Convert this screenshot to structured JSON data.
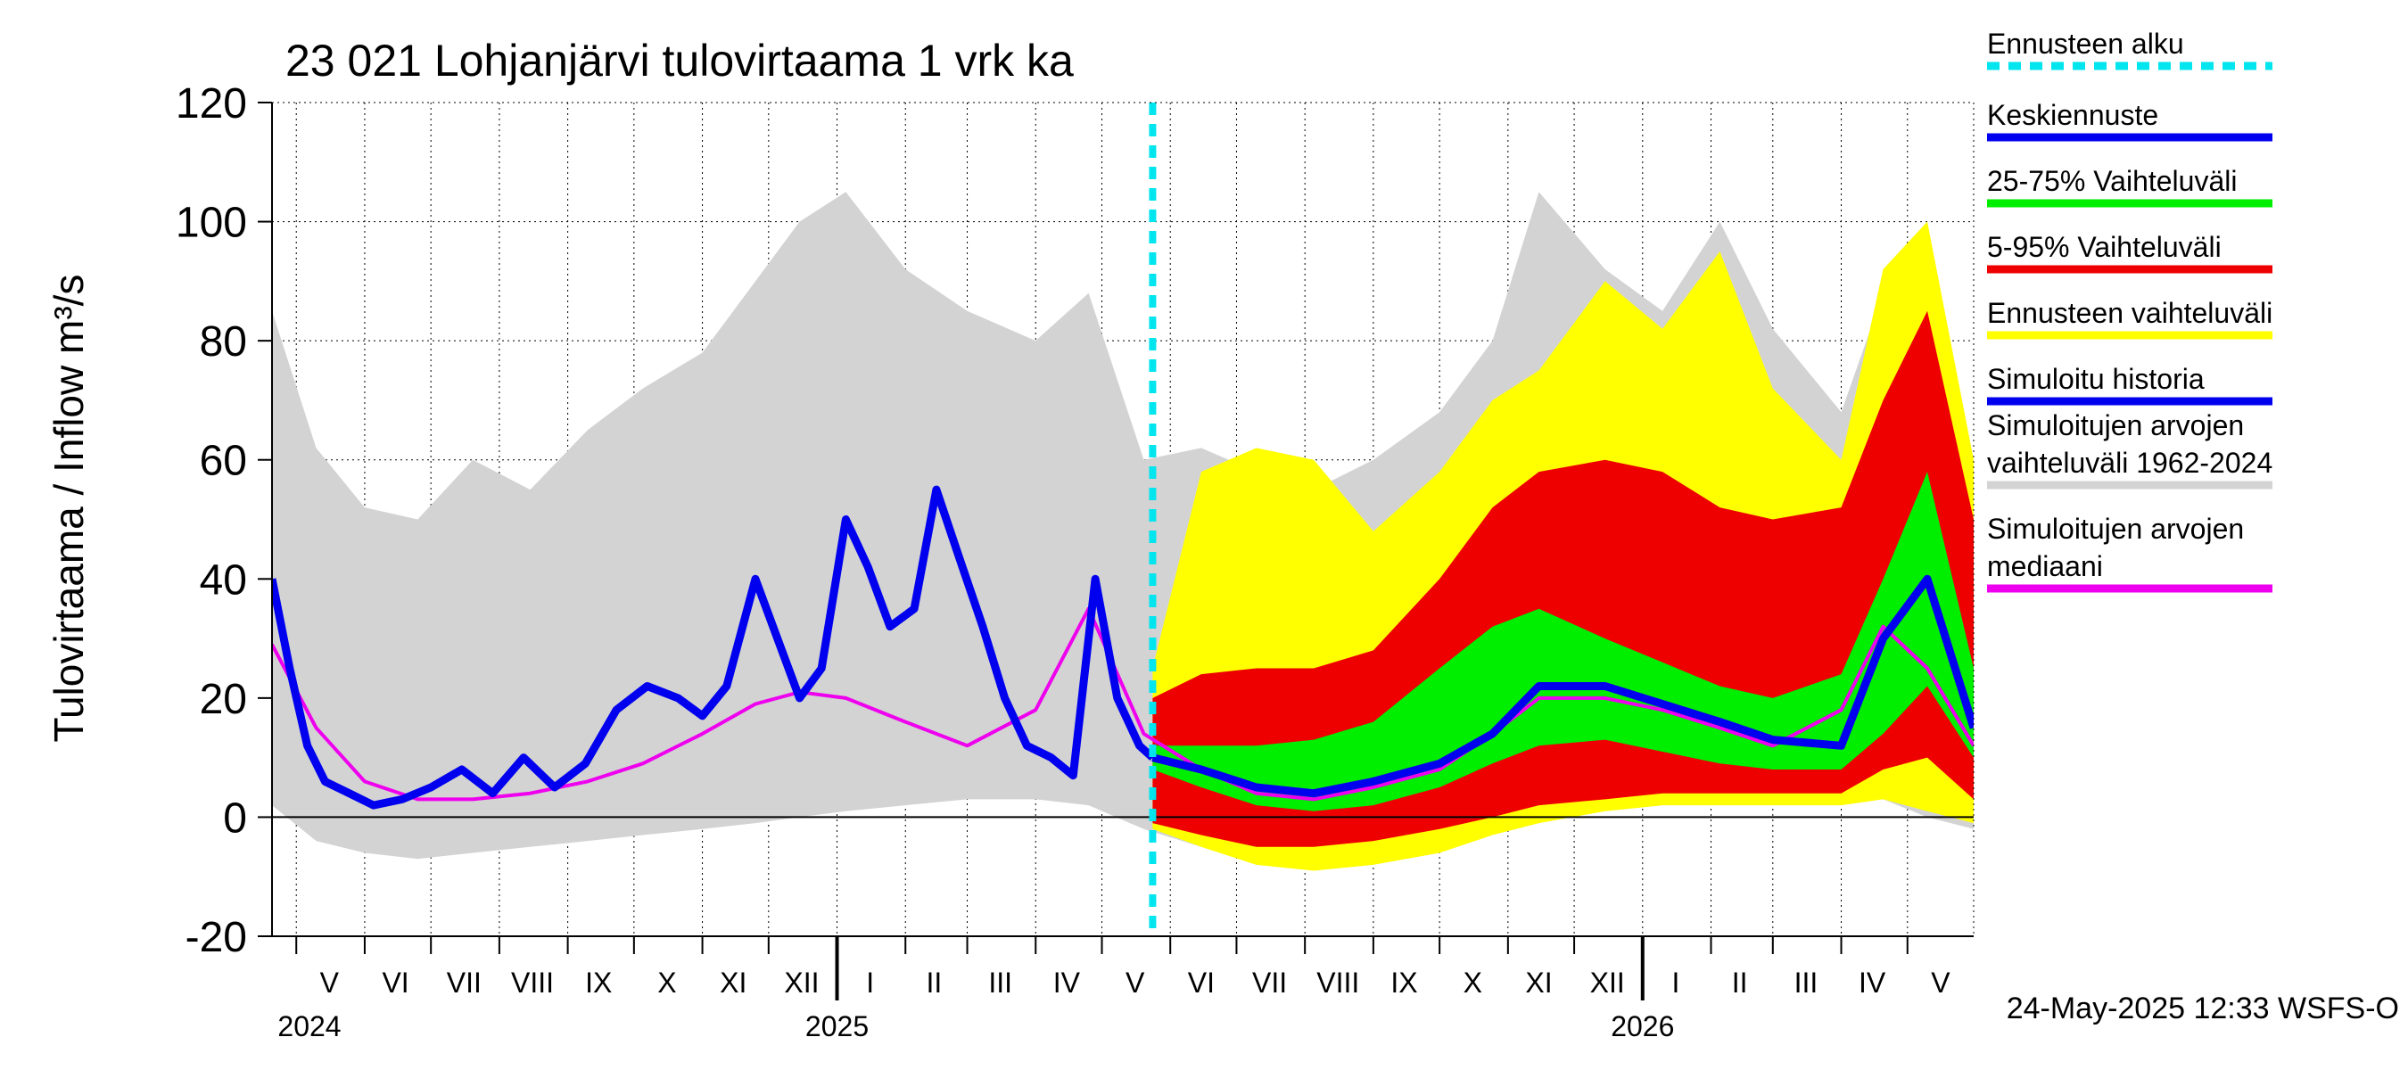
{
  "chart_data": {
    "type": "area",
    "title": "23 021 Lohjanjärvi tulovirtaama 1 vrk ka",
    "ylabel": "Tulovirtaama / Inflow    m³/s",
    "ylim": [
      -20,
      120
    ],
    "y_ticks": [
      -20,
      0,
      20,
      40,
      60,
      80,
      100,
      120
    ],
    "y_tick_labels": [
      "-20",
      "0",
      "20",
      "40",
      "60",
      "80",
      "100",
      "120"
    ],
    "grid": true,
    "x_start": "2024-04-20",
    "x_end": "2026-05-31",
    "forecast_start": "2025-05-24",
    "month_labels": [
      {
        "label": "V",
        "date": "2024-05-16"
      },
      {
        "label": "VI",
        "date": "2024-06-15"
      },
      {
        "label": "VII",
        "date": "2024-07-16"
      },
      {
        "label": "VIII",
        "date": "2024-08-16"
      },
      {
        "label": "IX",
        "date": "2024-09-15"
      },
      {
        "label": "X",
        "date": "2024-10-16"
      },
      {
        "label": "XI",
        "date": "2024-11-15"
      },
      {
        "label": "XII",
        "date": "2024-12-16"
      },
      {
        "label": "I",
        "date": "2025-01-16"
      },
      {
        "label": "II",
        "date": "2025-02-14"
      },
      {
        "label": "III",
        "date": "2025-03-16"
      },
      {
        "label": "IV",
        "date": "2025-04-15"
      },
      {
        "label": "V",
        "date": "2025-05-16"
      },
      {
        "label": "VI",
        "date": "2025-06-15"
      },
      {
        "label": "VII",
        "date": "2025-07-16"
      },
      {
        "label": "VIII",
        "date": "2025-08-16"
      },
      {
        "label": "IX",
        "date": "2025-09-15"
      },
      {
        "label": "X",
        "date": "2025-10-16"
      },
      {
        "label": "XI",
        "date": "2025-11-15"
      },
      {
        "label": "XII",
        "date": "2025-12-16"
      },
      {
        "label": "I",
        "date": "2026-01-16"
      },
      {
        "label": "II",
        "date": "2026-02-14"
      },
      {
        "label": "III",
        "date": "2026-03-16"
      },
      {
        "label": "IV",
        "date": "2026-04-15"
      },
      {
        "label": "V",
        "date": "2026-05-16"
      }
    ],
    "month_boundaries": [
      "2024-05-01",
      "2024-06-01",
      "2024-07-01",
      "2024-08-01",
      "2024-09-01",
      "2024-10-01",
      "2024-11-01",
      "2024-12-01",
      "2025-01-01",
      "2025-02-01",
      "2025-03-01",
      "2025-04-01",
      "2025-05-01",
      "2025-06-01",
      "2025-07-01",
      "2025-08-01",
      "2025-09-01",
      "2025-10-01",
      "2025-11-01",
      "2025-12-01",
      "2026-01-01",
      "2026-02-01",
      "2026-03-01",
      "2026-04-01",
      "2026-05-01"
    ],
    "year_labels": [
      {
        "label": "2024",
        "date": "2024-05-01"
      },
      {
        "label": "2025",
        "date": "2025-01-01"
      },
      {
        "label": "2026",
        "date": "2026-01-01"
      }
    ],
    "timestamp": "24-May-2025 12:33 WSFS-O",
    "legend": {
      "placement": "right",
      "items": [
        {
          "label": "Ennusteen alku",
          "color": "#00e5ee",
          "style": "dashed"
        },
        {
          "label": "Keskiennuste",
          "color": "#0000ee",
          "style": "line"
        },
        {
          "label": "25-75% Vaihteluväli",
          "color": "#00ee00",
          "style": "line"
        },
        {
          "label": "5-95% Vaihteluväli",
          "color": "#ee0000",
          "style": "line"
        },
        {
          "label": "Ennusteen vaihteluväli",
          "color": "#ffff00",
          "style": "line"
        },
        {
          "label": "Simuloitu historia",
          "color": "#0000ee",
          "style": "line"
        },
        {
          "label": "Simuloitujen arvojen\nvaihteluväli 1962-2024",
          "color": "#d3d3d3",
          "style": "line"
        },
        {
          "label": "Simuloitujen arvojen\nmediaani",
          "color": "#ee00ee",
          "style": "line"
        }
      ]
    },
    "series": [
      {
        "name": "Simuloitujen arvojen vaihteluväli 1962-2024",
        "kind": "band",
        "color": "#d3d3d3",
        "x": [
          "2024-04-20",
          "2024-05-10",
          "2024-06-01",
          "2024-06-25",
          "2024-07-20",
          "2024-08-15",
          "2024-09-10",
          "2024-10-05",
          "2024-11-01",
          "2024-11-25",
          "2024-12-15",
          "2025-01-05",
          "2025-02-01",
          "2025-03-01",
          "2025-04-01",
          "2025-04-25",
          "2025-05-20",
          "2025-06-15",
          "2025-07-10",
          "2025-08-05",
          "2025-09-01",
          "2025-10-01",
          "2025-10-25",
          "2025-11-15",
          "2025-12-15",
          "2026-01-10",
          "2026-02-05",
          "2026-03-01",
          "2026-04-01",
          "2026-04-20",
          "2026-05-10",
          "2026-05-31"
        ],
        "low": [
          2,
          -4,
          -6,
          -7,
          -6,
          -5,
          -4,
          -3,
          -2,
          -1,
          0,
          1,
          2,
          3,
          3,
          2,
          -2,
          -5,
          -7,
          -7,
          -6,
          -4,
          -2,
          0,
          1,
          2,
          3,
          3,
          3,
          3,
          0,
          -2
        ],
        "high": [
          85,
          62,
          52,
          50,
          60,
          55,
          65,
          72,
          78,
          90,
          100,
          105,
          92,
          85,
          80,
          88,
          60,
          62,
          58,
          55,
          60,
          68,
          80,
          105,
          92,
          85,
          100,
          82,
          68,
          88,
          75,
          40
        ]
      },
      {
        "name": "Ennusteen vaihteluväli",
        "kind": "band",
        "color": "#ffff00",
        "x": [
          "2025-05-24",
          "2025-06-15",
          "2025-07-10",
          "2025-08-05",
          "2025-09-01",
          "2025-10-01",
          "2025-10-25",
          "2025-11-15",
          "2025-12-15",
          "2026-01-10",
          "2026-02-05",
          "2026-03-01",
          "2026-04-01",
          "2026-04-20",
          "2026-05-10",
          "2026-05-31"
        ],
        "low": [
          -2,
          -5,
          -8,
          -9,
          -8,
          -6,
          -3,
          -1,
          1,
          2,
          2,
          2,
          2,
          3,
          1,
          -1
        ],
        "high": [
          25,
          58,
          62,
          60,
          48,
          58,
          70,
          75,
          90,
          82,
          95,
          72,
          60,
          92,
          100,
          60
        ]
      },
      {
        "name": "5-95% Vaihteluväli",
        "kind": "band",
        "color": "#ee0000",
        "x": [
          "2025-05-24",
          "2025-06-15",
          "2025-07-10",
          "2025-08-05",
          "2025-09-01",
          "2025-10-01",
          "2025-10-25",
          "2025-11-15",
          "2025-12-15",
          "2026-01-10",
          "2026-02-05",
          "2026-03-01",
          "2026-04-01",
          "2026-04-20",
          "2026-05-10",
          "2026-05-31"
        ],
        "low": [
          -1,
          -3,
          -5,
          -5,
          -4,
          -2,
          0,
          2,
          3,
          4,
          4,
          4,
          4,
          8,
          10,
          3
        ],
        "high": [
          20,
          24,
          25,
          25,
          28,
          40,
          52,
          58,
          60,
          58,
          52,
          50,
          52,
          70,
          85,
          50
        ]
      },
      {
        "name": "25-75% Vaihteluväli",
        "kind": "band",
        "color": "#00ee00",
        "x": [
          "2025-05-24",
          "2025-06-15",
          "2025-07-10",
          "2025-08-05",
          "2025-09-01",
          "2025-10-01",
          "2025-10-25",
          "2025-11-15",
          "2025-12-15",
          "2026-01-10",
          "2026-02-05",
          "2026-03-01",
          "2026-04-01",
          "2026-04-20",
          "2026-05-10",
          "2026-05-31"
        ],
        "low": [
          8,
          5,
          2,
          1,
          2,
          5,
          9,
          12,
          13,
          11,
          9,
          8,
          8,
          14,
          22,
          10
        ],
        "high": [
          12,
          12,
          12,
          13,
          16,
          25,
          32,
          35,
          30,
          26,
          22,
          20,
          24,
          40,
          58,
          25
        ]
      },
      {
        "name": "Simuloitujen arvojen mediaani",
        "kind": "line",
        "color": "#ee00ee",
        "x": [
          "2024-04-20",
          "2024-05-10",
          "2024-06-01",
          "2024-06-25",
          "2024-07-20",
          "2024-08-15",
          "2024-09-10",
          "2024-10-05",
          "2024-11-01",
          "2024-11-25",
          "2024-12-15",
          "2025-01-05",
          "2025-02-01",
          "2025-03-01",
          "2025-04-01",
          "2025-04-25",
          "2025-05-20",
          "2025-06-15",
          "2025-07-10",
          "2025-08-05",
          "2025-09-01",
          "2025-10-01",
          "2025-10-25",
          "2025-11-15",
          "2025-12-15",
          "2026-01-10",
          "2026-02-05",
          "2026-03-01",
          "2026-04-01",
          "2026-04-20",
          "2026-05-10",
          "2026-05-31"
        ],
        "values": [
          29,
          15,
          6,
          3,
          3,
          4,
          6,
          9,
          14,
          19,
          21,
          20,
          16,
          12,
          18,
          35,
          14,
          8,
          4,
          3,
          5,
          8,
          14,
          20,
          20,
          18,
          15,
          12,
          18,
          32,
          25,
          12
        ]
      },
      {
        "name": "Keskiennuste",
        "kind": "line",
        "color": "#0000ee",
        "x": [
          "2025-05-24",
          "2025-06-15",
          "2025-07-10",
          "2025-08-05",
          "2025-09-01",
          "2025-10-01",
          "2025-10-25",
          "2025-11-15",
          "2025-12-15",
          "2026-01-10",
          "2026-02-05",
          "2026-03-01",
          "2026-04-01",
          "2026-04-20",
          "2026-05-10",
          "2026-05-31"
        ],
        "values": [
          10,
          8,
          5,
          4,
          6,
          9,
          14,
          22,
          22,
          19,
          16,
          13,
          12,
          30,
          40,
          15
        ]
      },
      {
        "name": "Simuloitu historia",
        "kind": "line",
        "color": "#0000ee",
        "x": [
          "2024-04-20",
          "2024-04-28",
          "2024-05-06",
          "2024-05-14",
          "2024-05-25",
          "2024-06-05",
          "2024-06-18",
          "2024-07-01",
          "2024-07-15",
          "2024-07-29",
          "2024-08-12",
          "2024-08-26",
          "2024-09-09",
          "2024-09-23",
          "2024-10-07",
          "2024-10-21",
          "2024-11-01",
          "2024-11-12",
          "2024-11-25",
          "2024-12-05",
          "2024-12-15",
          "2024-12-25",
          "2025-01-05",
          "2025-01-15",
          "2025-01-25",
          "2025-02-05",
          "2025-02-15",
          "2025-02-25",
          "2025-03-08",
          "2025-03-18",
          "2025-03-28",
          "2025-04-08",
          "2025-04-18",
          "2025-04-28",
          "2025-05-08",
          "2025-05-18",
          "2025-05-24"
        ],
        "values": [
          40,
          25,
          12,
          6,
          4,
          2,
          3,
          5,
          8,
          4,
          10,
          5,
          9,
          18,
          22,
          20,
          17,
          22,
          40,
          30,
          20,
          25,
          50,
          42,
          32,
          35,
          55,
          44,
          32,
          20,
          12,
          10,
          7,
          40,
          20,
          12,
          10
        ]
      }
    ]
  }
}
